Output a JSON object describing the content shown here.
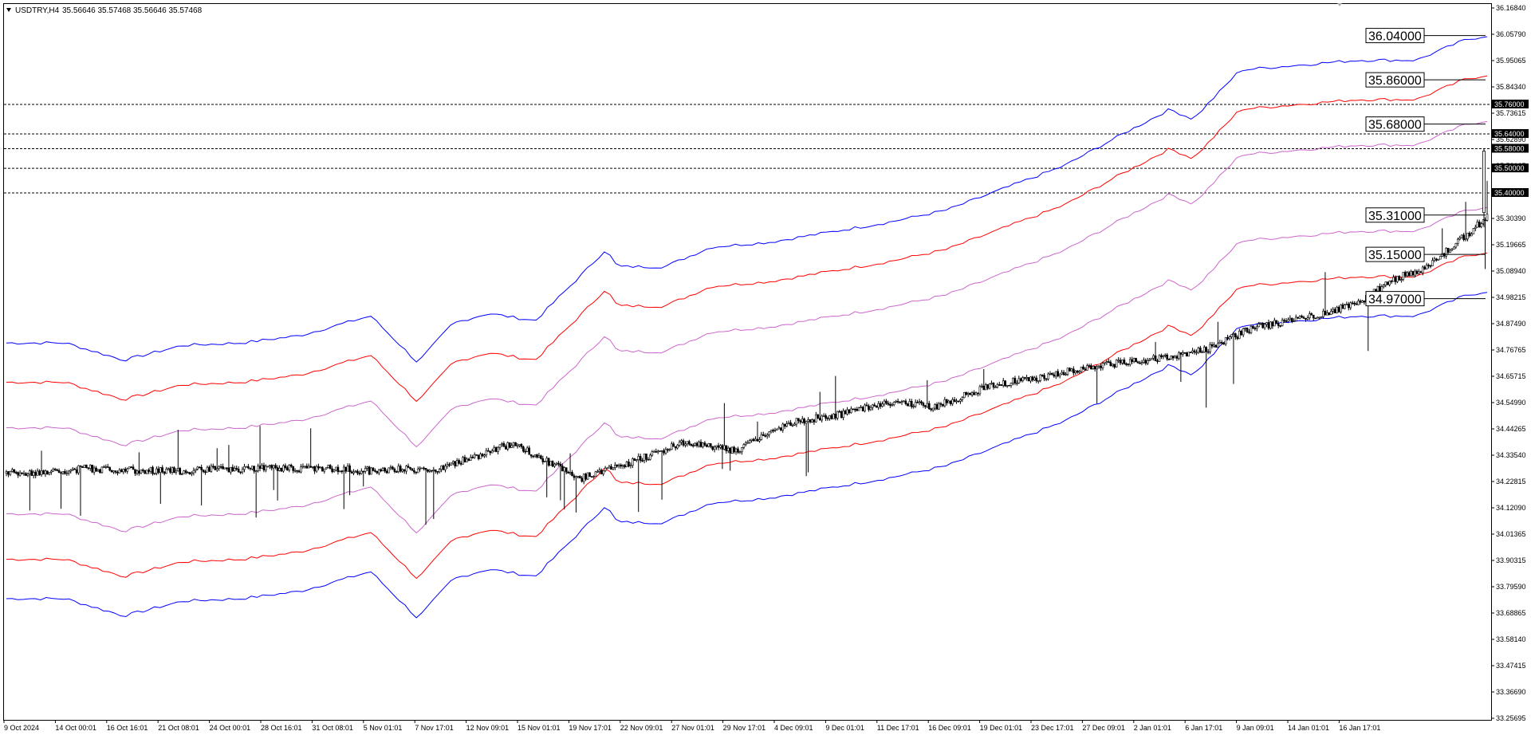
{
  "header": {
    "symbol": "USDTRY,H4",
    "ohlc": "35.56646 35.57468 35.56646 35.57468"
  },
  "colors": {
    "band_outer": "#0000ff",
    "band_middle": "#ff0000",
    "band_inner": "#cc66cc",
    "candles": "#000000",
    "hlines": "#000000",
    "level_labels": "#000000"
  },
  "chart_data": {
    "type": "candlestick",
    "title": "USDTRY,H4",
    "ylim": [
      33.25695,
      36.1684
    ],
    "y_ticks": [
      "36.16840",
      "36.05790",
      "35.95065",
      "35.84340",
      "35.73615",
      "35.62890",
      "35.52165",
      "35.41440",
      "35.30390",
      "35.19665",
      "35.08940",
      "34.98215",
      "34.87490",
      "34.76765",
      "34.65715",
      "34.54990",
      "34.44265",
      "34.33540",
      "34.22815",
      "34.12090",
      "34.01365",
      "33.90315",
      "33.79590",
      "33.68865",
      "33.58140",
      "33.47415",
      "33.36690",
      "33.25695"
    ],
    "x_ticks": [
      "9 Oct 2024",
      "14 Oct 00:01",
      "16 Oct 16:01",
      "21 Oct 08:01",
      "24 Oct 00:01",
      "28 Oct 16:01",
      "31 Oct 08:01",
      "5 Nov 01:01",
      "7 Nov 17:01",
      "12 Nov 09:01",
      "15 Nov 01:01",
      "19 Nov 17:01",
      "22 Nov 09:01",
      "27 Nov 01:01",
      "29 Nov 17:01",
      "4 Dec 09:01",
      "9 Dec 01:01",
      "11 Dec 17:01",
      "16 Dec 09:01",
      "19 Dec 01:01",
      "23 Dec 17:01",
      "27 Dec 09:01",
      "2 Jan 01:01",
      "6 Jan 17:01",
      "9 Jan 09:01",
      "14 Jan 01:01",
      "16 Jan 17:01"
    ],
    "horizontal_levels": [
      {
        "price": 35.76,
        "label": "35.76000"
      },
      {
        "price": 35.64,
        "label": "35.64000"
      },
      {
        "price": 35.58,
        "label": "35.58000"
      },
      {
        "price": 35.5,
        "label": "35.50000"
      },
      {
        "price": 35.4,
        "label": "35.40000"
      }
    ],
    "band_levels": [
      {
        "price": 36.04,
        "label": "36.04000",
        "series": "upper-outer"
      },
      {
        "price": 35.86,
        "label": "35.86000",
        "series": "upper-middle"
      },
      {
        "price": 35.68,
        "label": "35.68000",
        "series": "upper-inner"
      },
      {
        "price": 35.31,
        "label": "35.31000",
        "series": "lower-inner"
      },
      {
        "price": 35.15,
        "label": "35.15000",
        "series": "lower-middle"
      },
      {
        "price": 34.97,
        "label": "34.97000",
        "series": "lower-outer"
      }
    ],
    "price_path": {
      "x": [
        0,
        4,
        7,
        11,
        15,
        20,
        24,
        28,
        31,
        37,
        43,
        49,
        54,
        58,
        62,
        67,
        71,
        75,
        79,
        84,
        89,
        93,
        97,
        102,
        106,
        111,
        115,
        118,
        121,
        123,
        126
      ],
      "close": [
        34.26,
        34.27,
        34.28,
        34.27,
        34.27,
        34.28,
        34.28,
        34.28,
        34.27,
        34.28,
        34.38,
        34.24,
        34.32,
        34.39,
        34.35,
        34.47,
        34.5,
        34.55,
        34.53,
        34.62,
        34.66,
        34.7,
        34.72,
        34.76,
        34.85,
        34.9,
        34.95,
        35.05,
        35.1,
        35.18,
        35.3
      ]
    },
    "index_range": [
      0,
      126
    ],
    "bands": {
      "basis_anchors": {
        "x": [
          0,
          5,
          10,
          15,
          20,
          25,
          31,
          35,
          38,
          41,
          45,
          49,
          51,
          52,
          56,
          60,
          65,
          70,
          75,
          80,
          85,
          90,
          95,
          99,
          101,
          105,
          110,
          115,
          120,
          124,
          126
        ],
        "y": [
          34.27,
          34.27,
          34.2,
          34.26,
          34.27,
          34.3,
          34.38,
          34.19,
          34.35,
          34.39,
          34.36,
          34.55,
          34.65,
          34.58,
          34.58,
          34.66,
          34.68,
          34.72,
          34.76,
          34.81,
          34.9,
          34.99,
          35.12,
          35.22,
          35.18,
          35.38,
          35.4,
          35.42,
          35.42,
          35.5,
          35.52
        ]
      },
      "inner_offset": 0.175,
      "middle_offset": 0.36,
      "outer_offset": 0.52
    }
  }
}
